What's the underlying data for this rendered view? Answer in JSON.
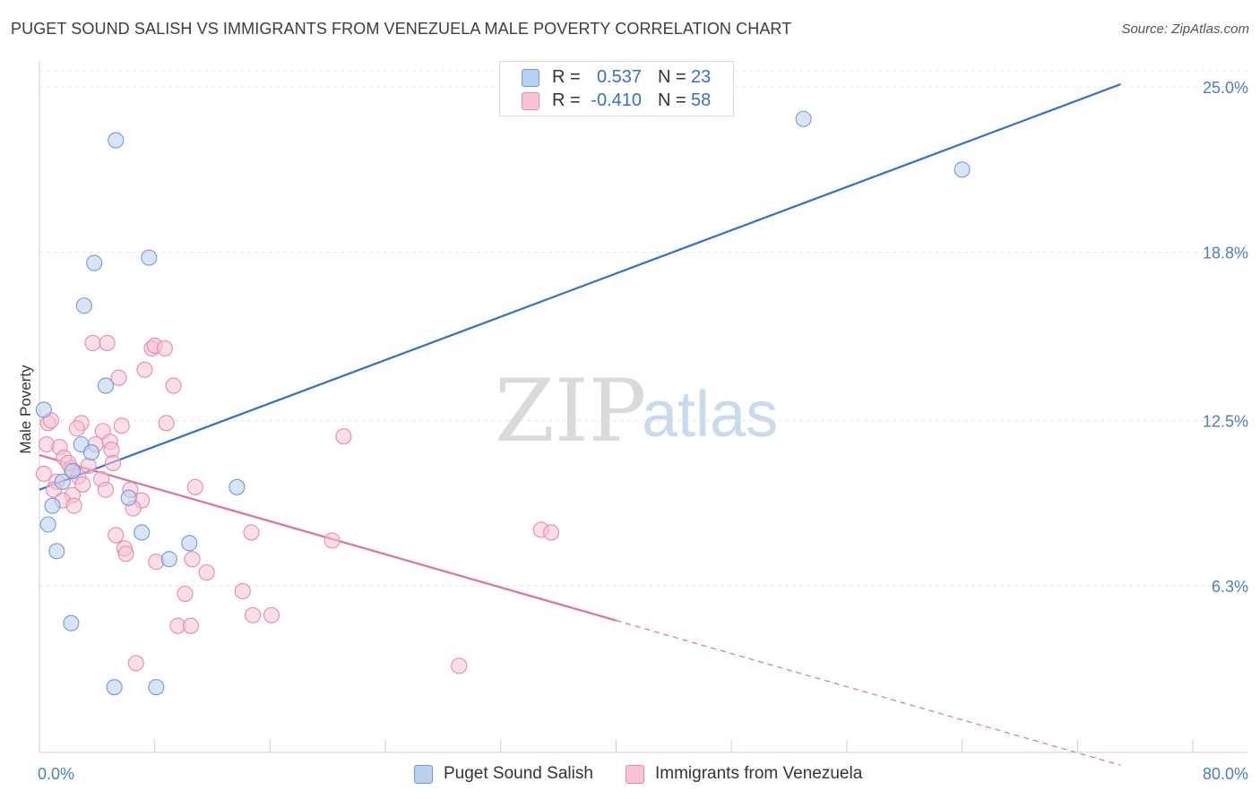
{
  "title": "PUGET SOUND SALISH VS IMMIGRANTS FROM VENEZUELA MALE POVERTY CORRELATION CHART",
  "source": "Source: ZipAtlas.com",
  "watermark": {
    "zip": "ZIP",
    "atlas": "atlas"
  },
  "colors": {
    "blue_fill": "#b9d0f1",
    "blue_stroke": "#6f9ad8",
    "blue_line": "#2f6fd0",
    "pink_fill": "#f8c3d4",
    "pink_stroke": "#e98aa9",
    "pink_line": "#e0709a",
    "grid": "#e6e6e6",
    "axis_text": "#4a7ec8"
  },
  "legend": {
    "rows": [
      {
        "r_label": "R =",
        "r_value": "0.537",
        "n_label": "N =",
        "n_value": "23",
        "series": "blue"
      },
      {
        "r_label": "R =",
        "r_value": "-0.410",
        "n_label": "N =",
        "n_value": "58",
        "series": "pink"
      }
    ]
  },
  "bottom_legend": {
    "items": [
      {
        "label": "Puget Sound Salish",
        "series": "blue"
      },
      {
        "label": "Immigrants from Venezuela",
        "series": "pink"
      }
    ]
  },
  "chart_data": {
    "type": "scatter",
    "title": "PUGET SOUND SALISH VS IMMIGRANTS FROM VENEZUELA MALE POVERTY CORRELATION CHART",
    "xlabel": "",
    "ylabel": "Male Poverty",
    "xlim": [
      0,
      80
    ],
    "ylim": [
      0,
      26
    ],
    "x_tick_labels": [
      {
        "value": 0,
        "label": "0.0%"
      },
      {
        "value": 80,
        "label": "80.0%"
      }
    ],
    "x_minor_ticks": [
      0,
      8,
      16,
      24,
      32,
      40,
      48,
      56,
      64,
      72,
      80
    ],
    "y_ticks": [
      {
        "value": 25.0,
        "label": "25.0%"
      },
      {
        "value": 18.8,
        "label": "18.8%"
      },
      {
        "value": 12.5,
        "label": "12.5%"
      },
      {
        "value": 6.3,
        "label": "6.3%"
      }
    ],
    "grid": true,
    "series": [
      {
        "name": "Puget Sound Salish",
        "color": "blue",
        "r": 0.537,
        "n": 23,
        "points": [
          [
            5.3,
            23.0
          ],
          [
            53.0,
            23.8
          ],
          [
            64.0,
            21.9
          ],
          [
            3.8,
            18.4
          ],
          [
            7.6,
            18.6
          ],
          [
            3.1,
            16.8
          ],
          [
            4.6,
            13.8
          ],
          [
            0.3,
            12.9
          ],
          [
            2.9,
            11.6
          ],
          [
            3.6,
            11.3
          ],
          [
            2.3,
            10.6
          ],
          [
            1.6,
            10.2
          ],
          [
            13.7,
            10.0
          ],
          [
            6.2,
            9.6
          ],
          [
            0.9,
            9.3
          ],
          [
            0.6,
            8.6
          ],
          [
            7.1,
            8.3
          ],
          [
            10.4,
            7.9
          ],
          [
            1.2,
            7.6
          ],
          [
            9.0,
            7.3
          ],
          [
            2.2,
            4.9
          ],
          [
            5.2,
            2.5
          ],
          [
            8.1,
            2.5
          ]
        ],
        "trend": {
          "x0": 0.0,
          "y0": 9.9,
          "x1": 75.0,
          "y1": 25.1,
          "dashed_until": 75.0
        }
      },
      {
        "name": "Immigrants from Venezuela",
        "color": "pink",
        "r": -0.41,
        "n": 58,
        "points": [
          [
            3.7,
            15.4
          ],
          [
            4.7,
            15.4
          ],
          [
            7.8,
            15.2
          ],
          [
            8.0,
            15.3
          ],
          [
            8.7,
            15.2
          ],
          [
            7.3,
            14.4
          ],
          [
            5.5,
            14.1
          ],
          [
            9.3,
            13.8
          ],
          [
            0.6,
            12.4
          ],
          [
            2.9,
            12.4
          ],
          [
            5.7,
            12.3
          ],
          [
            8.8,
            12.4
          ],
          [
            2.6,
            12.2
          ],
          [
            4.4,
            12.1
          ],
          [
            0.5,
            11.6
          ],
          [
            1.4,
            11.5
          ],
          [
            3.9,
            11.6
          ],
          [
            4.9,
            11.7
          ],
          [
            1.7,
            11.1
          ],
          [
            5.0,
            11.4
          ],
          [
            21.1,
            11.9
          ],
          [
            0.3,
            10.5
          ],
          [
            1.2,
            10.2
          ],
          [
            2.2,
            10.7
          ],
          [
            2.7,
            10.4
          ],
          [
            3.4,
            10.8
          ],
          [
            4.3,
            10.3
          ],
          [
            5.1,
            10.9
          ],
          [
            1.0,
            9.9
          ],
          [
            2.3,
            9.7
          ],
          [
            3.0,
            10.1
          ],
          [
            4.6,
            9.9
          ],
          [
            6.3,
            9.9
          ],
          [
            1.6,
            9.5
          ],
          [
            2.4,
            9.3
          ],
          [
            7.1,
            9.5
          ],
          [
            6.5,
            9.2
          ],
          [
            10.8,
            10.0
          ],
          [
            14.7,
            8.3
          ],
          [
            20.3,
            8.0
          ],
          [
            34.8,
            8.4
          ],
          [
            35.5,
            8.3
          ],
          [
            5.3,
            8.2
          ],
          [
            5.9,
            7.7
          ],
          [
            6.0,
            7.5
          ],
          [
            8.1,
            7.2
          ],
          [
            10.6,
            7.3
          ],
          [
            11.6,
            6.8
          ],
          [
            10.1,
            6.0
          ],
          [
            14.1,
            6.1
          ],
          [
            14.8,
            5.2
          ],
          [
            16.1,
            5.2
          ],
          [
            9.6,
            4.8
          ],
          [
            10.5,
            4.8
          ],
          [
            6.7,
            3.4
          ],
          [
            29.1,
            3.3
          ],
          [
            0.8,
            12.5
          ],
          [
            2.0,
            10.9
          ]
        ],
        "trend": {
          "x0": 0.0,
          "y0": 11.2,
          "x1": 40.0,
          "y1": 5.0,
          "dashed_until": 75.0
        }
      }
    ]
  }
}
